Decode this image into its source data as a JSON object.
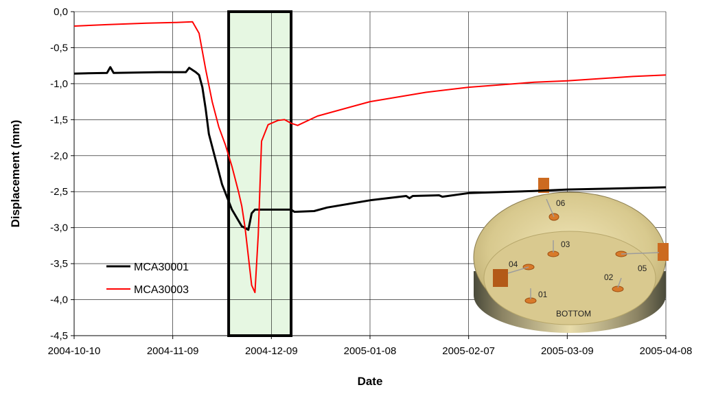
{
  "chart_data": {
    "type": "line",
    "title": "",
    "xlabel": "Date",
    "ylabel": "Displacement (mm)",
    "ylim": [
      -4.5,
      0.0
    ],
    "y_ticks": [
      "0,0",
      "-0,5",
      "-1,0",
      "-1,5",
      "-2,0",
      "-2,5",
      "-3,0",
      "-3,5",
      "-4,0",
      "-4,5"
    ],
    "x_ticks": [
      "2004-10-10",
      "2004-11-09",
      "2004-12-09",
      "2005-01-08",
      "2005-02-07",
      "2005-03-09",
      "2005-04-08"
    ],
    "xlim": [
      "2004-10-10",
      "2005-04-08"
    ],
    "grid": true,
    "legend_position": "lower-left",
    "highlight_region": {
      "x_start": "2004-11-26",
      "x_end": "2004-12-15",
      "fill": "#e6f7e2",
      "edge": "#000000"
    },
    "series": [
      {
        "name": "MCA30001",
        "color": "#000000",
        "points": [
          [
            "2004-10-10",
            -0.86
          ],
          [
            "2004-10-20",
            -0.85
          ],
          [
            "2004-10-21",
            -0.77
          ],
          [
            "2004-10-22",
            -0.85
          ],
          [
            "2004-11-05",
            -0.84
          ],
          [
            "2004-11-13",
            -0.84
          ],
          [
            "2004-11-14",
            -0.78
          ],
          [
            "2004-11-16",
            -0.84
          ],
          [
            "2004-11-17",
            -0.88
          ],
          [
            "2004-11-18",
            -1.05
          ],
          [
            "2004-11-19",
            -1.35
          ],
          [
            "2004-11-20",
            -1.7
          ],
          [
            "2004-11-22",
            -2.05
          ],
          [
            "2004-11-24",
            -2.4
          ],
          [
            "2004-11-27",
            -2.75
          ],
          [
            "2004-11-30",
            -2.98
          ],
          [
            "2004-12-02",
            -3.03
          ],
          [
            "2004-12-03",
            -2.8
          ],
          [
            "2004-12-04",
            -2.75
          ],
          [
            "2004-12-15",
            -2.75
          ],
          [
            "2004-12-16",
            -2.78
          ],
          [
            "2004-12-22",
            -2.77
          ],
          [
            "2004-12-26",
            -2.72
          ],
          [
            "2005-01-08",
            -2.62
          ],
          [
            "2005-01-19",
            -2.56
          ],
          [
            "2005-01-20",
            -2.59
          ],
          [
            "2005-01-21",
            -2.56
          ],
          [
            "2005-01-29",
            -2.55
          ],
          [
            "2005-01-30",
            -2.57
          ],
          [
            "2005-02-07",
            -2.52
          ],
          [
            "2005-02-27",
            -2.49
          ],
          [
            "2005-03-09",
            -2.47
          ],
          [
            "2005-03-29",
            -2.45
          ],
          [
            "2005-04-08",
            -2.44
          ]
        ]
      },
      {
        "name": "MCA30003",
        "color": "#ff0000",
        "points": [
          [
            "2004-10-10",
            -0.2
          ],
          [
            "2004-10-20",
            -0.18
          ],
          [
            "2004-11-01",
            -0.16
          ],
          [
            "2004-11-10",
            -0.15
          ],
          [
            "2004-11-15",
            -0.14
          ],
          [
            "2004-11-17",
            -0.3
          ],
          [
            "2004-11-19",
            -0.8
          ],
          [
            "2004-11-21",
            -1.25
          ],
          [
            "2004-11-23",
            -1.6
          ],
          [
            "2004-11-25",
            -1.85
          ],
          [
            "2004-11-27",
            -2.15
          ],
          [
            "2004-11-29",
            -2.5
          ],
          [
            "2004-11-30",
            -2.7
          ],
          [
            "2004-12-01",
            -3.0
          ],
          [
            "2004-12-02",
            -3.4
          ],
          [
            "2004-12-03",
            -3.8
          ],
          [
            "2004-12-04",
            -3.9
          ],
          [
            "2004-12-05",
            -3.1
          ],
          [
            "2004-12-06",
            -1.8
          ],
          [
            "2004-12-08",
            -1.57
          ],
          [
            "2004-12-11",
            -1.51
          ],
          [
            "2004-12-13",
            -1.5
          ],
          [
            "2004-12-15",
            -1.55
          ],
          [
            "2004-12-17",
            -1.58
          ],
          [
            "2004-12-23",
            -1.45
          ],
          [
            "2005-01-08",
            -1.25
          ],
          [
            "2005-01-25",
            -1.12
          ],
          [
            "2005-02-07",
            -1.05
          ],
          [
            "2005-02-27",
            -0.98
          ],
          [
            "2005-03-09",
            -0.96
          ],
          [
            "2005-03-29",
            -0.9
          ],
          [
            "2005-04-08",
            -0.88
          ]
        ]
      }
    ],
    "inset": {
      "caption": "BOTTOM",
      "sensor_labels": [
        "06",
        "03",
        "04",
        "01",
        "02",
        "05"
      ]
    }
  }
}
